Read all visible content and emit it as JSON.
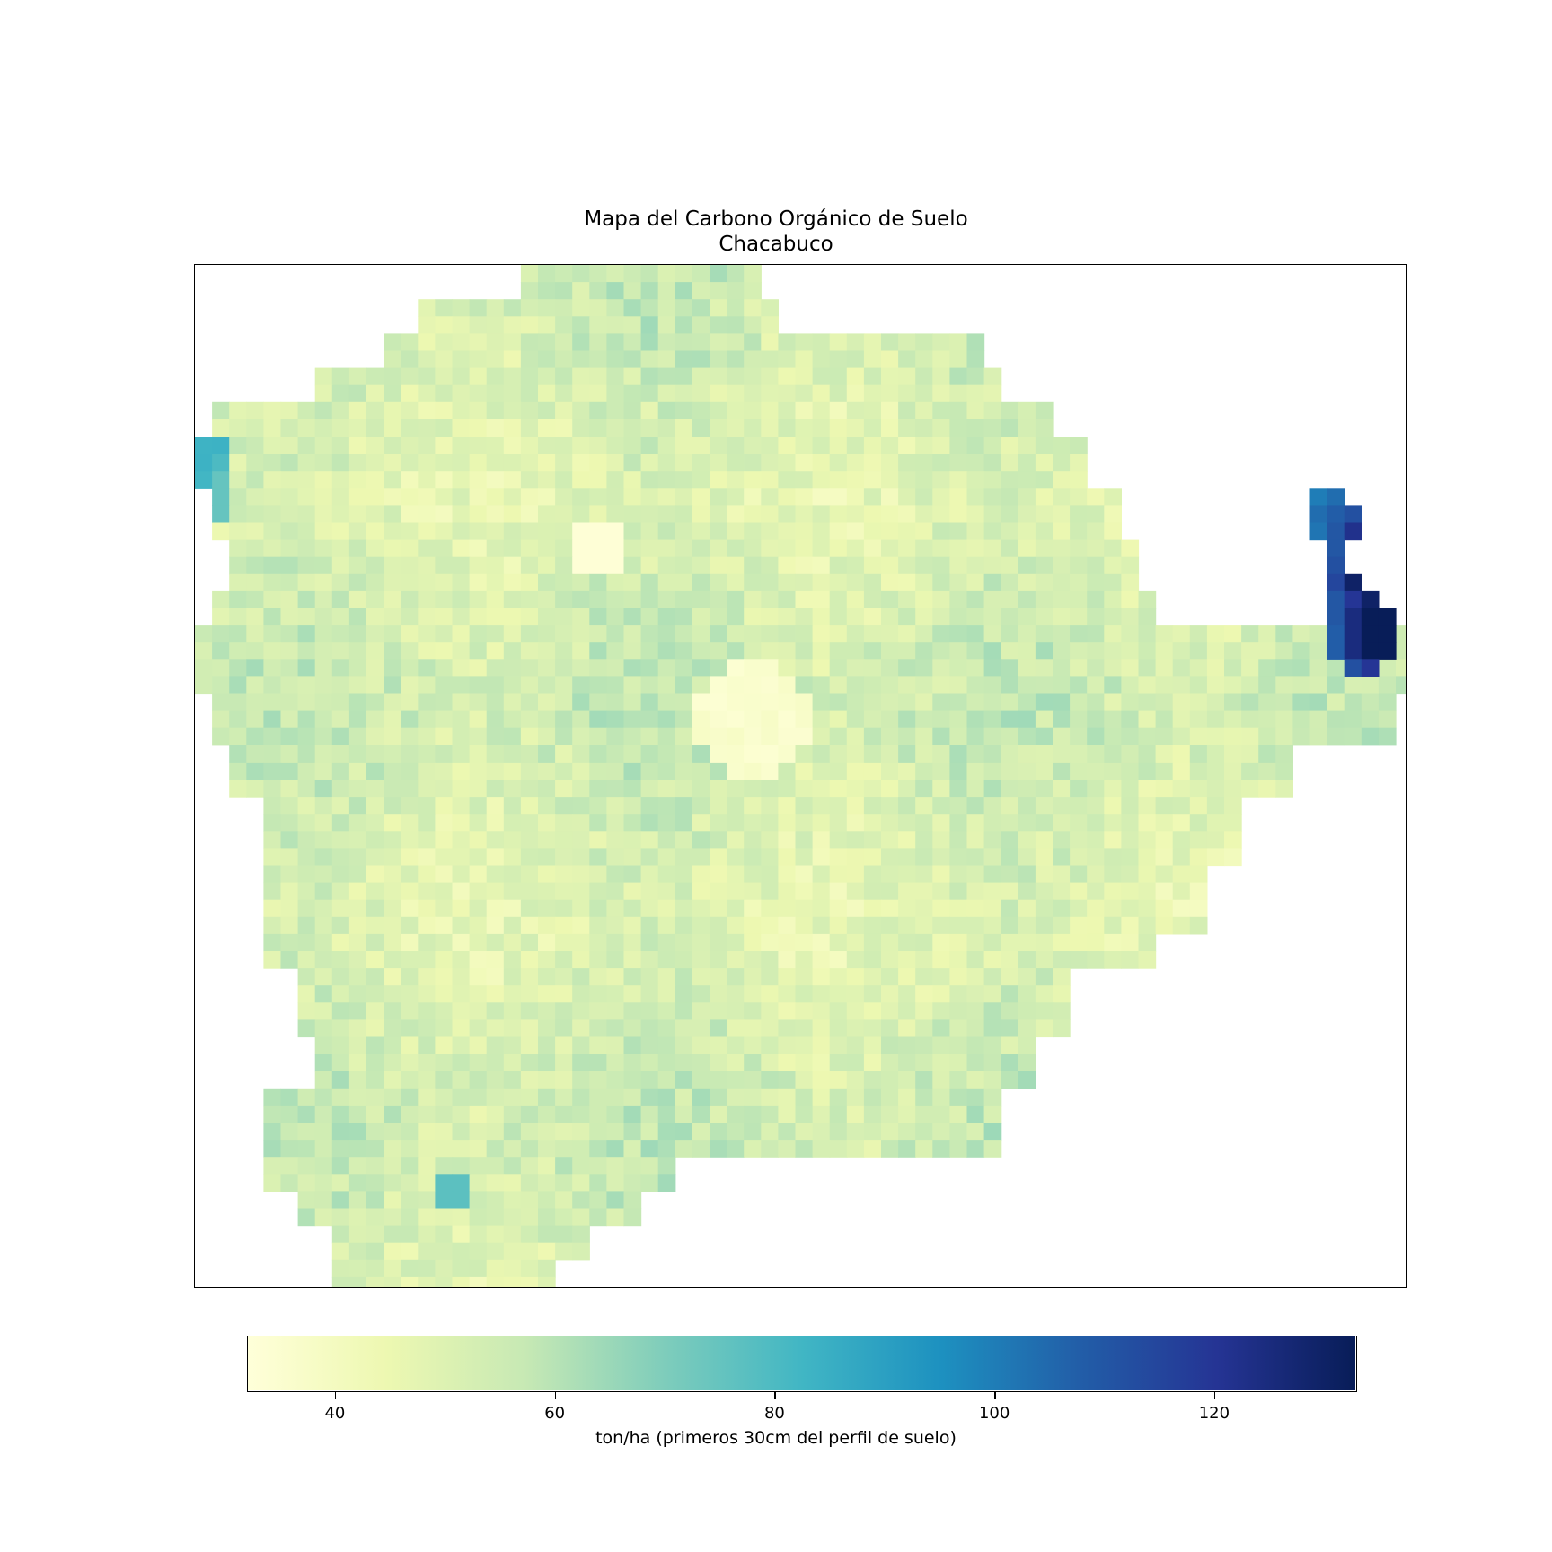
{
  "title": "Mapa del Carbono Orgánico de Suelo",
  "subtitle": "Chacabuco",
  "colorbar": {
    "label": "ton/ha (primeros 30cm del perfil de suelo)",
    "min": 32,
    "max": 133,
    "ticks": [
      "40",
      "60",
      "80",
      "100",
      "120"
    ],
    "colormap": "YlGnBu",
    "stops": [
      "#ffffd9",
      "#edf8b1",
      "#c7e9b4",
      "#7fcdbb",
      "#41b6c4",
      "#1d91c0",
      "#225ea8",
      "#253494",
      "#081d58"
    ]
  },
  "chart_data": {
    "type": "heatmap",
    "region": "Chacabuco",
    "unit": "ton/ha",
    "value_range": [
      32,
      133
    ],
    "typical_values": {
      "interior": [
        45,
        60
      ],
      "west_edge_high": [
        75,
        85
      ],
      "east_edge_high": [
        100,
        133
      ],
      "central_low": [
        33,
        38
      ]
    }
  }
}
